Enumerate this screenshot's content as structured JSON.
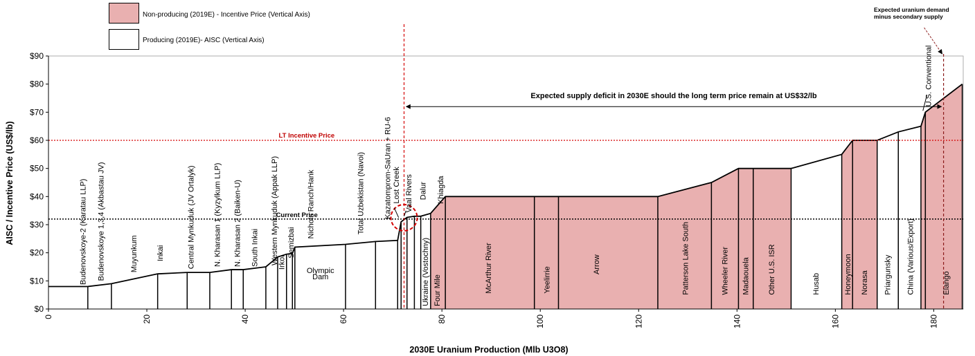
{
  "colors": {
    "nonproducing_fill": "#e9b0b0",
    "producing_fill": "#ffffff",
    "incentive_line": "#d40000",
    "current_line": "#000000",
    "demand_line": "#8b1a1a",
    "incentive_label": "#c00000"
  },
  "legend": {
    "nonproducing": "Non-producing (2019E) - Incentive Price (Vertical Axis)",
    "producing": "Producing (2019E)- AISC (Vertical Axis)"
  },
  "demand_title": {
    "line1": "Expected uranium demand",
    "line2": "minus secondary supply"
  },
  "chart_data": {
    "type": "area",
    "title": "",
    "xlabel": "2030E Uranium Production (Mlb U3O8)",
    "ylabel": "AISC / Incentive Price (US$/lb)",
    "xlim": [
      0,
      186
    ],
    "ylim": [
      0,
      90
    ],
    "x_ticks": [
      0,
      20,
      40,
      60,
      80,
      100,
      120,
      140,
      160,
      180
    ],
    "y_ticks": [
      0,
      10,
      20,
      30,
      40,
      50,
      60,
      70,
      80,
      90
    ],
    "y_tick_labels": [
      "$0",
      "$10",
      "$20",
      "$30",
      "$40",
      "$50",
      "$60",
      "$70",
      "$80",
      "$90"
    ],
    "series": [
      {
        "name": "Non-producing (2019E) - Incentive Price (Vertical Axis)"
      },
      {
        "name": "Producing (2019E)- AISC (Vertical Axis)"
      }
    ],
    "segments": [
      {
        "name": "Budenovskoye-2 (Karatau LLP)",
        "x0": 0,
        "x1": 8,
        "y0": 8,
        "y1": 8,
        "status": "producing"
      },
      {
        "name": "Budenovskoye 1,3,4 (Akbastau JV)",
        "x0": 8,
        "x1": 12.8,
        "y0": 8,
        "y1": 9,
        "status": "producing"
      },
      {
        "name": "Muyunkum",
        "x0": 12.8,
        "x1": 22.2,
        "y0": 9,
        "y1": 12.5,
        "status": "producing"
      },
      {
        "name": "Inkai",
        "x0": 22.2,
        "x1": 28.2,
        "y0": 12.5,
        "y1": 13,
        "status": "producing"
      },
      {
        "name": "Central Mynkuduk (JV Ortalyk)",
        "x0": 28.2,
        "x1": 32.8,
        "y0": 13,
        "y1": 13,
        "status": "producing"
      },
      {
        "name": "N. Kharasan 1 (Kyzylkum LLP)",
        "x0": 32.8,
        "x1": 37.2,
        "y0": 13,
        "y1": 14,
        "status": "producing"
      },
      {
        "name": "N. Kharasan 2 (Baiken-U)",
        "x0": 37.2,
        "x1": 39.6,
        "y0": 14,
        "y1": 14,
        "status": "producing"
      },
      {
        "name": "South Inkai",
        "x0": 39.6,
        "x1": 44.2,
        "y0": 14,
        "y1": 15,
        "status": "producing"
      },
      {
        "name": "Western Mynkuduk (Appak LLP)",
        "x0": 44.2,
        "x1": 46.6,
        "y0": 15,
        "y1": 18.5,
        "status": "producing"
      },
      {
        "name": "Irkol",
        "x0": 46.6,
        "x1": 48.4,
        "y0": 18.5,
        "y1": 19.5,
        "status": "producing"
      },
      {
        "name": "Semizbai",
        "x0": 48.4,
        "x1": 49.6,
        "y0": 19.5,
        "y1": 19.8,
        "status": "producing"
      },
      {
        "name": "Nichols Ranch/Hank",
        "x0": 49.6,
        "x1": 50.1,
        "y0": 19.8,
        "y1": 22,
        "status": "producing"
      },
      {
        "name": "Olympic Dam",
        "x0": 50.1,
        "x1": 60.4,
        "y0": 22,
        "y1": 23,
        "status": "producing"
      },
      {
        "name": "Total Uzbekistan (Navoi)",
        "x0": 60.4,
        "x1": 66.5,
        "y0": 23,
        "y1": 24,
        "status": "producing"
      },
      {
        "name": "Kazatomprom-SaUran + RU-6",
        "x0": 66.5,
        "x1": 71,
        "y0": 24,
        "y1": 24.4,
        "status": "producing"
      },
      {
        "name": "Lost Creek",
        "x0": 71,
        "x1": 71.7,
        "y0": 24.4,
        "y1": 31,
        "status": "producing"
      },
      {
        "name": "Vaal Rivers",
        "x0": 71.7,
        "x1": 72.9,
        "y0": 31,
        "y1": 32.6,
        "status": "producing"
      },
      {
        "name": "Dalur",
        "x0": 72.9,
        "x1": 74.4,
        "y0": 32.6,
        "y1": 33,
        "status": "producing"
      },
      {
        "name": "Khiagda",
        "x0": 74.4,
        "x1": 75.7,
        "y0": 33,
        "y1": 33,
        "status": "producing"
      },
      {
        "name": "Ukraine (Vostochny)",
        "x0": 75.7,
        "x1": 77.7,
        "y0": 33,
        "y1": 34,
        "status": "producing"
      },
      {
        "name": "Four Mile",
        "x0": 77.7,
        "x1": 80.7,
        "y0": 34,
        "y1": 40,
        "status": "nonproducing"
      },
      {
        "name": "McArthur River",
        "x0": 80.7,
        "x1": 98.8,
        "y0": 40,
        "y1": 40,
        "status": "nonproducing"
      },
      {
        "name": "Yeelirrie",
        "x0": 98.8,
        "x1": 103.7,
        "y0": 40,
        "y1": 40,
        "status": "nonproducing"
      },
      {
        "name": "Arrow",
        "x0": 103.7,
        "x1": 123.9,
        "y0": 40,
        "y1": 40,
        "status": "nonproducing"
      },
      {
        "name": "Patterson Lake South",
        "x0": 123.9,
        "x1": 134.8,
        "y0": 40,
        "y1": 45,
        "status": "nonproducing"
      },
      {
        "name": "Wheeler River",
        "x0": 134.8,
        "x1": 140.3,
        "y0": 45,
        "y1": 50,
        "status": "nonproducing"
      },
      {
        "name": "Madaouela",
        "x0": 140.3,
        "x1": 143.3,
        "y0": 50,
        "y1": 50,
        "status": "nonproducing"
      },
      {
        "name": "Other U.S. ISR",
        "x0": 143.3,
        "x1": 151,
        "y0": 50,
        "y1": 50,
        "status": "nonproducing"
      },
      {
        "name": "Husab",
        "x0": 151,
        "x1": 161.3,
        "y0": 50,
        "y1": 55,
        "status": "producing"
      },
      {
        "name": "Honeymoon",
        "x0": 161.3,
        "x1": 163.5,
        "y0": 55,
        "y1": 60,
        "status": "nonproducing"
      },
      {
        "name": "Norasa",
        "x0": 163.5,
        "x1": 168.5,
        "y0": 60,
        "y1": 60,
        "status": "nonproducing"
      },
      {
        "name": "Priargunsky",
        "x0": 168.5,
        "x1": 172.8,
        "y0": 60,
        "y1": 63,
        "status": "producing"
      },
      {
        "name": "China (Various/Export)",
        "x0": 172.8,
        "x1": 177.4,
        "y0": 63,
        "y1": 65,
        "status": "producing"
      },
      {
        "name": "U.S. Conventional",
        "x0": 177.4,
        "x1": 178.3,
        "y0": 65,
        "y1": 70,
        "status": "nonproducing"
      },
      {
        "name": "Elango",
        "x0": 178.3,
        "x1": 185.8,
        "y0": 70,
        "y1": 80,
        "status": "nonproducing"
      }
    ],
    "reference_lines": {
      "lt_incentive_price": {
        "label": "LT Incentive Price",
        "y": 60
      },
      "current_price": {
        "label": "Current Price",
        "y": 32
      },
      "current_supply_x": 72.3,
      "expected_demand_x": 182
    },
    "annotation": {
      "text": "Expected supply deficit in 2030E should the long term price remain at US$32/lb",
      "x0": 72.3,
      "x1": 182,
      "y": 72
    },
    "labels": [
      {
        "text": "Budenovskoye-2 (Karatau LLP)",
        "x": 7,
        "y": 8.6,
        "rot": true
      },
      {
        "text": "Budenovskoye 1,3,4 (Akbastau JV)",
        "x": 10.6,
        "y": 10,
        "rot": true
      },
      {
        "text": "Muyunkum",
        "x": 17.3,
        "y": 13,
        "rot": true
      },
      {
        "text": "Inkai",
        "x": 22.7,
        "y": 17,
        "rot": true
      },
      {
        "text": "Central Mynkuduk (JV Ortalyk)",
        "x": 28.9,
        "y": 14.2,
        "rot": true
      },
      {
        "text": "N. Kharasan 1 (Kyzylkum LLP)",
        "x": 34.3,
        "y": 15,
        "rot": true
      },
      {
        "text": "N. Kharasan 2 (Baiken-U)",
        "x": 38.4,
        "y": 15,
        "rot": true
      },
      {
        "text": "South Inkai",
        "x": 41.9,
        "y": 15,
        "rot": true
      },
      {
        "text": "Western Mynkuduk (Appak LLP)",
        "x": 45.9,
        "y": 15.5,
        "rot": true
      },
      {
        "text": "Irkol",
        "x": 47.4,
        "y": 14,
        "rot": true
      },
      {
        "text": "Semizbai",
        "x": 49.3,
        "y": 18,
        "rot": true
      },
      {
        "text": "Nichols Ranch/Hank",
        "x": 53.3,
        "y": 25,
        "rot": true
      },
      {
        "text": "Olympic",
        "x": 55.3,
        "y": 12.8,
        "rot": false
      },
      {
        "text": "Dam",
        "x": 55.3,
        "y": 10.6,
        "rot": false
      },
      {
        "text": "Total Uzbekistan (Navoi)",
        "x": 63.4,
        "y": 26.5,
        "rot": true
      },
      {
        "text": "Kazatomprom-SaUran + RU-6",
        "x": 68.9,
        "y": 32,
        "rot": true
      },
      {
        "text": "Lost Creek",
        "x": 70.7,
        "y": 37.5,
        "rot": true
      },
      {
        "text": "Vaal Rivers",
        "x": 73.2,
        "y": 34.3,
        "rot": true
      },
      {
        "text": "Dalur",
        "x": 76.1,
        "y": 38.8,
        "rot": true
      },
      {
        "text": "Khiagda",
        "x": 79.7,
        "y": 37.4,
        "rot": true
      },
      {
        "text": "Ukraine (Vostochny)",
        "x": 76.6,
        "y": 1,
        "rot": true
      },
      {
        "text": "Four Mile",
        "x": 79,
        "y": 1,
        "rot": true
      },
      {
        "text": "McArthur River",
        "x": 89.4,
        "y": 5.5,
        "rot": true
      },
      {
        "text": "Yeelirrie",
        "x": 101.3,
        "y": 5.5,
        "rot": true
      },
      {
        "text": "Arrow",
        "x": 111.4,
        "y": 12.3,
        "rot": true
      },
      {
        "text": "Patterson Lake South",
        "x": 129.5,
        "y": 5,
        "rot": true
      },
      {
        "text": "Wheeler River",
        "x": 137.5,
        "y": 5,
        "rot": true
      },
      {
        "text": "Madaouela",
        "x": 141.7,
        "y": 5,
        "rot": true
      },
      {
        "text": "Other U.S. ISR",
        "x": 147,
        "y": 5,
        "rot": true
      },
      {
        "text": "Husab",
        "x": 156,
        "y": 5,
        "rot": true
      },
      {
        "text": "Honeymoon",
        "x": 162.5,
        "y": 5,
        "rot": true
      },
      {
        "text": "Norasa",
        "x": 165.9,
        "y": 5,
        "rot": true
      },
      {
        "text": "Priargunsky",
        "x": 170.6,
        "y": 5,
        "rot": true
      },
      {
        "text": "China (Various/Export)",
        "x": 175.2,
        "y": 5,
        "rot": true
      },
      {
        "text": "U.S. Conventional",
        "x": 178.9,
        "y": 72,
        "rot": true
      },
      {
        "text": "Elango",
        "x": 182.5,
        "y": 5,
        "rot": true
      }
    ]
  }
}
